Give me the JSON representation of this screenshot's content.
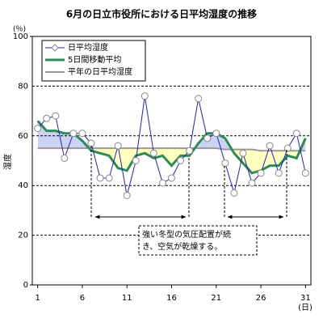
{
  "chart_data": {
    "type": "line",
    "title": "6月の日立市役所における日平均湿度の推移",
    "y_unit": "(％)",
    "y_label": "湿度",
    "x_unit": "(日)",
    "x": [
      1,
      2,
      3,
      4,
      5,
      6,
      7,
      8,
      9,
      10,
      11,
      12,
      13,
      14,
      15,
      16,
      17,
      18,
      19,
      20,
      21,
      22,
      23,
      24,
      25,
      26,
      27,
      28,
      29,
      30,
      31
    ],
    "xlim": [
      0.4,
      31.6
    ],
    "xticks": [
      1,
      6,
      11,
      16,
      21,
      26,
      31
    ],
    "ylim": [
      0,
      100
    ],
    "yticks": [
      0,
      20,
      40,
      60,
      80,
      100
    ],
    "grid": true,
    "series": [
      {
        "name": "日平均湿度",
        "color": "#2020c0",
        "values": [
          63,
          67,
          68,
          51,
          61,
          61,
          57,
          43,
          43,
          56,
          36,
          50,
          76,
          53,
          41,
          43,
          50,
          54,
          75,
          59,
          61,
          49,
          37,
          53,
          41,
          45,
          56,
          45,
          55,
          61,
          45
        ]
      },
      {
        "name": "5日間移動平均",
        "color": "#2e8b57",
        "values": [
          66,
          62,
          62,
          61,
          61,
          58,
          54,
          53,
          52,
          47,
          46,
          52,
          53,
          51,
          52,
          48,
          52,
          52,
          57,
          61,
          61,
          59,
          53,
          49,
          45,
          46,
          48,
          48,
          52,
          51,
          59
        ]
      },
      {
        "name": "平年の日平均湿度",
        "color": "#999999",
        "values": [
          55,
          55,
          55,
          55,
          55,
          55,
          55,
          55,
          55,
          55,
          55,
          55,
          55,
          55,
          55,
          55,
          55,
          55,
          55,
          55,
          55,
          54.5,
          54.5,
          54.5,
          54.5,
          54,
          54,
          54,
          54,
          54,
          54
        ]
      }
    ],
    "fill_above_color": "#ccd2f2",
    "fill_below_color": "#ffffc0",
    "annotation": [
      "強い冬型の気圧配置が続",
      "き、空気が乾燥する。"
    ]
  }
}
